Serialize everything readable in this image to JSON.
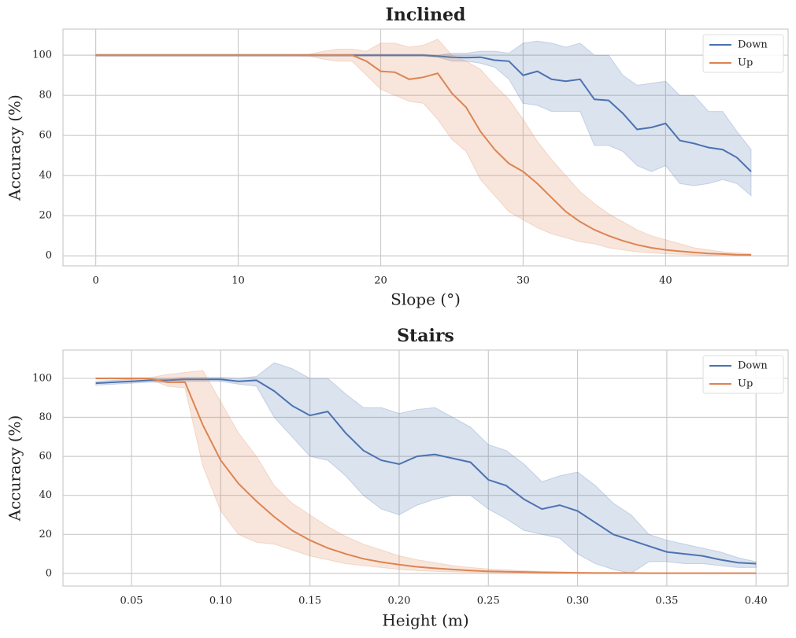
{
  "chart_data": [
    {
      "type": "line",
      "title": "Inclined",
      "xlabel": "Slope (°)",
      "ylabel": "Accuracy (%)",
      "x": [
        0,
        1,
        2,
        3,
        4,
        5,
        6,
        7,
        8,
        9,
        10,
        11,
        12,
        13,
        14,
        15,
        16,
        17,
        18,
        19,
        20,
        21,
        22,
        23,
        24,
        25,
        26,
        27,
        28,
        29,
        30,
        31,
        32,
        33,
        34,
        35,
        36,
        37,
        38,
        39,
        40,
        41,
        42,
        43,
        44,
        45,
        46
      ],
      "series": [
        {
          "name": "Down",
          "color": "#4c72b0",
          "values": [
            100,
            100,
            100,
            100,
            100,
            100,
            100,
            100,
            100,
            100,
            100,
            100,
            100,
            100,
            100,
            100,
            100,
            100,
            100,
            100,
            100,
            100,
            100,
            100,
            99.5,
            99,
            98.8,
            99,
            97.5,
            97,
            90,
            92,
            88,
            87,
            88,
            78,
            77.5,
            71,
            63,
            64,
            66,
            57.5,
            56,
            54,
            53,
            49,
            42
          ],
          "upper": [
            100.5,
            100.5,
            100.5,
            100.5,
            100.5,
            100.5,
            100.5,
            100.5,
            100.5,
            100.5,
            100.5,
            100.5,
            100.5,
            100.5,
            100.5,
            100.5,
            100.5,
            100.5,
            100.5,
            100.5,
            100.5,
            100.5,
            100.5,
            100.5,
            100,
            101,
            101,
            102,
            102,
            101,
            106,
            107,
            106,
            104,
            106,
            100,
            100,
            90,
            85,
            86,
            87,
            80,
            80,
            72,
            72,
            62,
            53
          ],
          "lower": [
            99.5,
            99.5,
            99.5,
            99.5,
            99.5,
            99.5,
            99.5,
            99.5,
            99.5,
            99.5,
            99.5,
            99.5,
            99.5,
            99.5,
            99.5,
            99.5,
            99.5,
            99.5,
            99.5,
            99.5,
            99.5,
            99.5,
            99.5,
            99.5,
            99,
            97,
            97,
            96,
            94,
            88,
            76,
            75,
            72,
            72,
            72,
            55,
            55,
            52,
            45,
            42,
            45,
            36,
            35,
            36,
            38,
            36,
            30
          ]
        },
        {
          "name": "Up",
          "color": "#dd8452",
          "values": [
            100,
            100,
            100,
            100,
            100,
            100,
            100,
            100,
            100,
            100,
            100,
            100,
            100,
            100,
            100,
            100,
            100,
            100,
            100,
            97,
            92,
            91.5,
            88,
            89,
            91,
            81,
            74,
            62,
            53,
            46,
            42,
            36,
            29,
            22,
            17,
            13,
            10,
            7.5,
            5.5,
            4,
            3,
            2.3,
            1.7,
            1.2,
            0.9,
            0.6,
            0.5
          ],
          "upper": [
            100.3,
            100.3,
            100.3,
            100.3,
            100.3,
            100.3,
            100.3,
            100.3,
            100.3,
            100.3,
            100.3,
            100.3,
            100.3,
            100.3,
            100.3,
            100.5,
            102,
            103,
            103,
            102,
            106,
            106,
            104,
            105,
            108,
            100,
            97,
            93,
            85,
            78,
            68,
            57,
            48,
            40,
            32,
            26,
            21,
            17,
            13,
            10,
            8,
            6,
            4,
            3,
            2,
            1.5,
            1
          ],
          "lower": [
            99.7,
            99.7,
            99.7,
            99.7,
            99.7,
            99.7,
            99.7,
            99.7,
            99.7,
            99.7,
            99.7,
            99.7,
            99.7,
            99.7,
            99.7,
            99.5,
            98,
            97,
            97,
            90,
            83,
            80,
            77,
            76,
            68,
            58,
            52,
            38,
            30,
            22,
            18,
            14,
            11,
            9,
            7,
            6,
            4,
            3,
            2,
            1.5,
            1,
            0.8,
            0.5,
            0.3,
            0.2,
            0.1,
            0.1
          ]
        }
      ],
      "xlim": [
        -2.3,
        48.6
      ],
      "ylim": [
        -5,
        113
      ],
      "xticks": [
        0,
        10,
        20,
        30,
        40
      ],
      "yticks": [
        0,
        20,
        40,
        60,
        80,
        100
      ],
      "grid": true,
      "legend": "upper right"
    },
    {
      "type": "line",
      "title": "Stairs",
      "xlabel": "Height (m)",
      "ylabel": "Accuracy (%)",
      "x": [
        0.03,
        0.04,
        0.05,
        0.06,
        0.07,
        0.08,
        0.09,
        0.1,
        0.11,
        0.12,
        0.13,
        0.14,
        0.15,
        0.16,
        0.17,
        0.18,
        0.19,
        0.2,
        0.21,
        0.22,
        0.23,
        0.24,
        0.25,
        0.26,
        0.27,
        0.28,
        0.29,
        0.3,
        0.31,
        0.32,
        0.33,
        0.34,
        0.35,
        0.36,
        0.37,
        0.38,
        0.39,
        0.4
      ],
      "series": [
        {
          "name": "Down",
          "color": "#4c72b0",
          "values": [
            97.5,
            98,
            98.5,
            99,
            99,
            99.5,
            99.5,
            99.5,
            98.5,
            99,
            93.5,
            86,
            81,
            83,
            72,
            63,
            58,
            56,
            60,
            61,
            59,
            57,
            48,
            45,
            38,
            33,
            35,
            32,
            26,
            20,
            17,
            14,
            11,
            10,
            9,
            7,
            5.5,
            5
          ],
          "upper": [
            98.5,
            99,
            99.5,
            100,
            100,
            100.5,
            100.5,
            100.5,
            100,
            101,
            108,
            105,
            100,
            100,
            92,
            85,
            85,
            82,
            84,
            85,
            80,
            75,
            66,
            63,
            56,
            47,
            50,
            52,
            45,
            36,
            30,
            20,
            17,
            15,
            13,
            11,
            8,
            6
          ],
          "lower": [
            96.5,
            97,
            97.5,
            98,
            98,
            98.5,
            98.5,
            98.5,
            97,
            96,
            80,
            70,
            60,
            58,
            50,
            40,
            33,
            30,
            35,
            38,
            40,
            40,
            33,
            28,
            22,
            20,
            18,
            10,
            5,
            2,
            0,
            6,
            6,
            5,
            5,
            4,
            3,
            3
          ]
        },
        {
          "name": "Up",
          "color": "#dd8452",
          "values": [
            100,
            100,
            100,
            100,
            98,
            98,
            76,
            58,
            46,
            37,
            29,
            22,
            17,
            13,
            10,
            7.5,
            5.8,
            4.5,
            3.4,
            2.6,
            2,
            1.5,
            1.1,
            0.9,
            0.7,
            0.5,
            0.4,
            0.3,
            0.2,
            0.2,
            0.2,
            0.1,
            0.1,
            0.1,
            0.1,
            0.1,
            0.1,
            0.1
          ],
          "upper": [
            100.3,
            100.3,
            100.3,
            100.3,
            102,
            103,
            104,
            88,
            72,
            60,
            45,
            36,
            30,
            24,
            19,
            15,
            12,
            9,
            7,
            5.5,
            4,
            3,
            2.3,
            1.8,
            1.4,
            1,
            0.8,
            0.6,
            0.4,
            0.4,
            0.4,
            0.3,
            0.3,
            0.3,
            0.3,
            0.3,
            0.3,
            0.3
          ],
          "lower": [
            99.7,
            99.7,
            99.7,
            99.7,
            96,
            95,
            55,
            32,
            20,
            16,
            15,
            12,
            9,
            7,
            5,
            4,
            3,
            2,
            1.5,
            1,
            0.8,
            0.6,
            0.4,
            0.3,
            0.2,
            0.1,
            0.1,
            0.05,
            0,
            0,
            0,
            0,
            0,
            0,
            0,
            0,
            0,
            0
          ]
        }
      ],
      "xlim": [
        0.0116,
        0.418
      ],
      "ylim": [
        -6.5,
        114.5
      ],
      "xticks": [
        0.05,
        {
          "value": 0.1,
          "label": "0.10"
        },
        0.15,
        {
          "value": 0.2,
          "label": "0.20"
        },
        0.25,
        {
          "value": 0.3,
          "label": "0.30"
        },
        0.35,
        {
          "value": 0.4,
          "label": "0.40"
        }
      ],
      "yticks": [
        0,
        20,
        40,
        60,
        80,
        100
      ],
      "grid": true,
      "legend": "upper right"
    }
  ]
}
